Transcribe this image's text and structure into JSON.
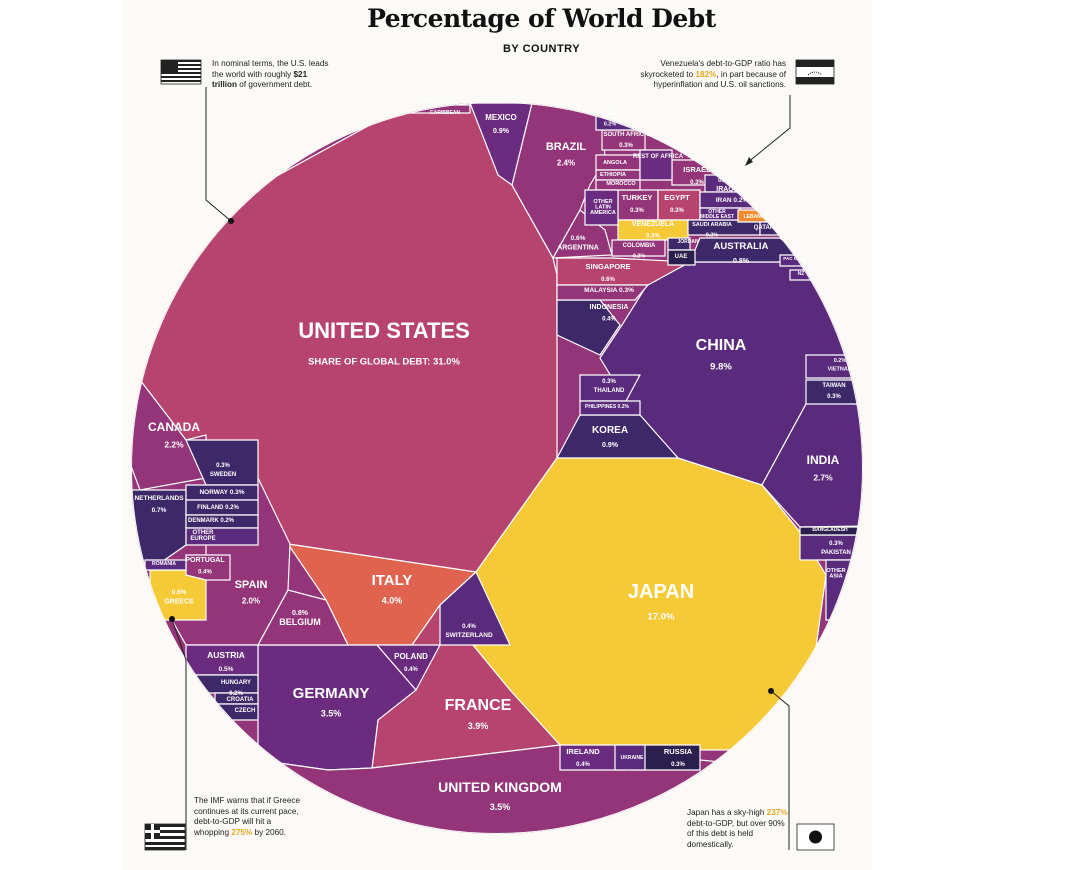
{
  "title": "Percentage of World Debt",
  "subtitle": "BY COUNTRY",
  "notes": {
    "us": {
      "pre": "In nominal terms, the U.S. leads the world with roughly ",
      "bold": "$21 trillion",
      "post": " of government debt."
    },
    "venezuela": {
      "pre": "Venezuela's debt-to-GDP ratio has skyrocketed to ",
      "hl": "182%",
      "post": ", in part because of hyperinflation and U.S. oil sanctions."
    },
    "greece": {
      "pre": "The IMF warns that if Greece continues at its current pace, debt-to-GDP will hit a whopping ",
      "hl": "275%",
      "post": " by 2060."
    },
    "japan": {
      "pre": "Japan has a sky-high ",
      "hl": "237%",
      "post": " debt-to-GDP, but over 90% of this debt is held domestically."
    }
  },
  "stat_prefix": "SHARE OF GLOBAL DEBT: ",
  "colors": {
    "pink": "#b6446e",
    "magenta": "#933578",
    "purple": "#6b2c80",
    "violet": "#5a2a7c",
    "indigo": "#3d2869",
    "navy": "#2a1f4d",
    "coral": "#e0634f",
    "yellow": "#f6c936",
    "orange": "#f28a2f",
    "border": "#ffffff"
  },
  "chart_data": {
    "type": "voronoi-treemap",
    "title": "Percentage of World Debt",
    "subtitle": "BY COUNTRY",
    "unit": "% of world debt",
    "cells": [
      {
        "name": "UNITED STATES",
        "value": 31.0,
        "label": "31.0%"
      },
      {
        "name": "JAPAN",
        "value": 17.0,
        "label": "17.0%"
      },
      {
        "name": "CHINA",
        "value": 9.8,
        "label": "9.8%"
      },
      {
        "name": "ITALY",
        "value": 4.0,
        "label": "4.0%"
      },
      {
        "name": "FRANCE",
        "value": 3.9,
        "label": "3.9%"
      },
      {
        "name": "GERMANY",
        "value": 3.5,
        "label": "3.5%"
      },
      {
        "name": "UNITED KINGDOM",
        "value": 3.5,
        "label": "3.5%"
      },
      {
        "name": "INDIA",
        "value": 2.7,
        "label": "2.7%"
      },
      {
        "name": "BRAZIL",
        "value": 2.4,
        "label": "2.4%"
      },
      {
        "name": "CANADA",
        "value": 2.2,
        "label": "2.2%"
      },
      {
        "name": "SPAIN",
        "value": 2.0,
        "label": "2.0%"
      },
      {
        "name": "MEXICO",
        "value": 0.9,
        "label": "0.9%"
      },
      {
        "name": "KOREA",
        "value": 0.9,
        "label": "0.9%"
      },
      {
        "name": "BELGIUM",
        "value": 0.8,
        "label": "0.8%"
      },
      {
        "name": "AUSTRALIA",
        "value": 0.8,
        "label": "0.8%"
      },
      {
        "name": "NETHERLANDS",
        "value": 0.7,
        "label": "0.7%"
      },
      {
        "name": "ARGENTINA",
        "value": 0.6,
        "label": "0.6%"
      },
      {
        "name": "SINGAPORE",
        "value": 0.6,
        "label": "0.6%"
      },
      {
        "name": "GREECE",
        "value": 0.6,
        "label": "0.6%"
      },
      {
        "name": "AUSTRIA",
        "value": 0.5,
        "label": "0.5%"
      },
      {
        "name": "INDONESIA",
        "value": 0.4,
        "label": "0.4%"
      },
      {
        "name": "PORTUGAL",
        "value": 0.4,
        "label": "0.4%"
      },
      {
        "name": "SWITZERLAND",
        "value": 0.4,
        "label": "0.4%"
      },
      {
        "name": "POLAND",
        "value": 0.4,
        "label": "0.4%"
      },
      {
        "name": "IRELAND",
        "value": 0.4,
        "label": "0.4%"
      },
      {
        "name": "MALAYSIA",
        "value": 0.3,
        "label": "0.3%"
      },
      {
        "name": "THAILAND",
        "value": 0.3,
        "label": "0.3%"
      },
      {
        "name": "SWEDEN",
        "value": 0.3,
        "label": "0.3%"
      },
      {
        "name": "NORWAY",
        "value": 0.3,
        "label": "0.3%"
      },
      {
        "name": "TURKEY",
        "value": 0.3,
        "label": "0.3%"
      },
      {
        "name": "EGYPT",
        "value": 0.3,
        "label": "0.3%"
      },
      {
        "name": "ISRAEL",
        "value": 0.3,
        "label": "0.3%"
      },
      {
        "name": "SOUTH AFRICA",
        "value": 0.3,
        "label": "0.3%"
      },
      {
        "name": "VENEZUELA",
        "value": 0.3,
        "label": "0.3%"
      },
      {
        "name": "RUSSIA",
        "value": 0.3,
        "label": "0.3%"
      },
      {
        "name": "PAKISTAN",
        "value": 0.3,
        "label": "0.3%"
      },
      {
        "name": "TAIWAN",
        "value": 0.3,
        "label": "0.3%"
      },
      {
        "name": "IRAQ",
        "value": 0.2,
        "label": "0.2%"
      },
      {
        "name": "IRAN",
        "value": 0.2,
        "label": "0.2%"
      },
      {
        "name": "SAUDI ARABIA",
        "value": 0.2,
        "label": "0.2%"
      },
      {
        "name": "COLOMBIA",
        "value": 0.2,
        "label": "0.2%"
      },
      {
        "name": "PHILIPPINES",
        "value": 0.2,
        "label": "0.2%"
      },
      {
        "name": "FINLAND",
        "value": 0.2,
        "label": "0.2%"
      },
      {
        "name": "DENMARK",
        "value": 0.2,
        "label": "0.2%"
      },
      {
        "name": "HUNGARY",
        "value": 0.2,
        "label": "0.2%"
      },
      {
        "name": "VIETNAM",
        "value": 0.2,
        "label": "0.2%"
      },
      {
        "name": "NIGERIA",
        "value": 0.2,
        "label": "0.2%"
      },
      {
        "name": "PUERTO RICO"
      },
      {
        "name": "CARIBBEAN"
      },
      {
        "name": "ANGOLA"
      },
      {
        "name": "ETHIOPIA"
      },
      {
        "name": "MOROCCO"
      },
      {
        "name": "REST OF AFRICA"
      },
      {
        "name": "OTHER LATIN AMERICA"
      },
      {
        "name": "OTHER MIDDLE EAST"
      },
      {
        "name": "LEBANON"
      },
      {
        "name": "QATAR"
      },
      {
        "name": "JORDAN"
      },
      {
        "name": "UAE"
      },
      {
        "name": "PAC ISLES"
      },
      {
        "name": "NZ"
      },
      {
        "name": "BANGLADESH"
      },
      {
        "name": "OTHER ASIA"
      },
      {
        "name": "OTHER EUROPE"
      },
      {
        "name": "ROMANIA"
      },
      {
        "name": "CROATIA"
      },
      {
        "name": "CZECH"
      },
      {
        "name": "UKRAINE"
      }
    ]
  }
}
